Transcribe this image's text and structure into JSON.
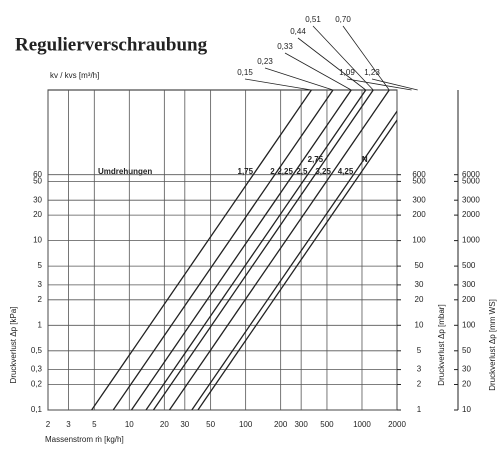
{
  "chart_data": {
    "type": "kv-diagram",
    "title": "Regulierverschraubung",
    "kv_axis_label": "kv / kvs [m³/h]",
    "xlabel": "Massenstrom ṁ [kg/h]",
    "ylabel": "Druckverlust Δp [kPa]",
    "y2label": "Druckverlust Δp [mbar]",
    "y3label": "Druckverlust Δp [mm WS]",
    "turns_label": "Umdrehungen",
    "log_x": true,
    "log_y": true,
    "grid": true,
    "color": "#222222",
    "xlim": [
      2,
      2000
    ],
    "xticks": [
      2,
      3,
      5,
      10,
      20,
      30,
      50,
      100,
      200,
      300,
      500,
      1000,
      2000
    ],
    "ylim": [
      0.1,
      600
    ],
    "yticks": [
      {
        "value": 0.1,
        "label": "0,1"
      },
      {
        "value": 0.2,
        "label": "0,2"
      },
      {
        "value": 0.3,
        "label": "0,3"
      },
      {
        "value": 0.5,
        "label": "0,5"
      },
      1,
      2,
      3,
      5,
      10,
      20,
      30,
      50,
      60
    ],
    "y2lim": [
      1,
      6000
    ],
    "y2ticks": [
      1,
      2,
      3,
      5,
      10,
      20,
      30,
      50,
      100,
      200,
      300,
      500,
      600
    ],
    "y3lim": [
      10,
      60000
    ],
    "y3ticks": [
      10,
      20,
      30,
      50,
      100,
      200,
      300,
      500,
      1000,
      2000,
      3000,
      5000,
      6000
    ],
    "series": [
      {
        "kv": 0.15,
        "kv_label": "0,15",
        "turns": "1,75"
      },
      {
        "kv": 0.23,
        "kv_label": "0,23",
        "turns": "2"
      },
      {
        "kv": 0.33,
        "kv_label": "0,33",
        "turns": "2,25"
      },
      {
        "kv": 0.44,
        "kv_label": "0,44",
        "turns": "2,5"
      },
      {
        "kv": 0.51,
        "kv_label": "0,51",
        "turns": "2,75"
      },
      {
        "kv": 0.7,
        "kv_label": "0,70",
        "turns": "3,25"
      },
      {
        "kv": 1.09,
        "kv_label": "1,09",
        "turns": "4,25"
      },
      {
        "kv": 1.23,
        "kv_label": "1,23",
        "turns": "N"
      }
    ]
  }
}
